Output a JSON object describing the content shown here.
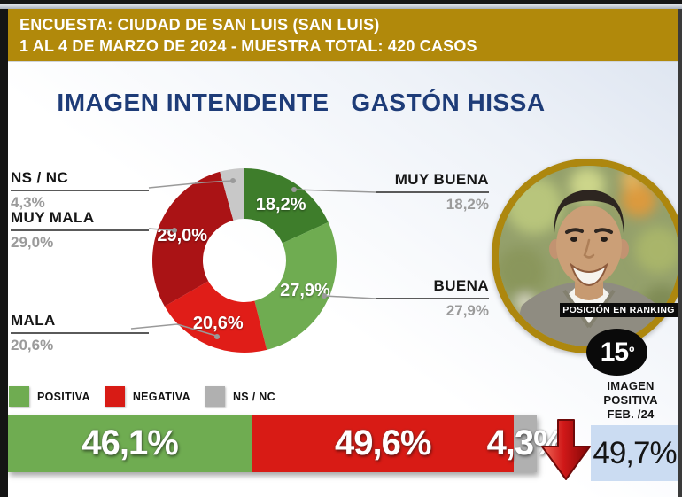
{
  "banner": {
    "line1": "ENCUESTA: CIUDAD DE SAN LUIS (SAN LUIS)",
    "line2": "1 AL 4 DE MARZO DE 2024 - MUESTRA TOTAL: 420 CASOS",
    "bg_color": "#b1890b"
  },
  "title": "IMAGEN INTENDENTE   GASTÓN HISSA",
  "title_color": "#1e3c78",
  "chart_data": [
    {
      "type": "pie",
      "subtype": "donut",
      "title": "IMAGEN INTENDENTE GASTÓN HISSA",
      "legend_position": "none",
      "slices": [
        {
          "label": "MUY BUENA",
          "value": 18.2,
          "display": "18,2%",
          "color": "#3e7d2b",
          "inside_label": true
        },
        {
          "label": "BUENA",
          "value": 27.9,
          "display": "27,9%",
          "color": "#6fac51",
          "inside_label": true
        },
        {
          "label": "MALA",
          "value": 20.6,
          "display": "20,6%",
          "color": "#e01d18",
          "inside_label": true
        },
        {
          "label": "MUY MALA",
          "value": 29.0,
          "display": "29,0%",
          "color": "#aa1315",
          "inside_label": true
        },
        {
          "label": "NS / NC",
          "value": 4.3,
          "display": "4,3%",
          "color": "#c8c8c8",
          "inside_label": false
        }
      ]
    },
    {
      "type": "bar",
      "subtype": "stacked-horizontal",
      "title": "",
      "segments": [
        {
          "label": "POSITIVA",
          "value": 46.1,
          "display": "46,1%",
          "color": "#6fac51"
        },
        {
          "label": "NEGATIVA",
          "value": 49.6,
          "display": "49,6%",
          "color": "#d81b15"
        },
        {
          "label": "NS / NC",
          "value": 4.3,
          "display": "4,3%",
          "color": "#b0b0b0"
        }
      ]
    }
  ],
  "ranking": {
    "photo_caption": "POSICIÓN EN RANKING",
    "position_number": "15",
    "position_ordinal": "º",
    "label_lines": [
      "IMAGEN",
      "POSITIVA",
      "FEB. /24"
    ],
    "previous_value": "49,7%",
    "trend": "down",
    "trend_color": "#c00000",
    "box_color": "#cbdcf2",
    "ring_color": "#ad870e"
  }
}
